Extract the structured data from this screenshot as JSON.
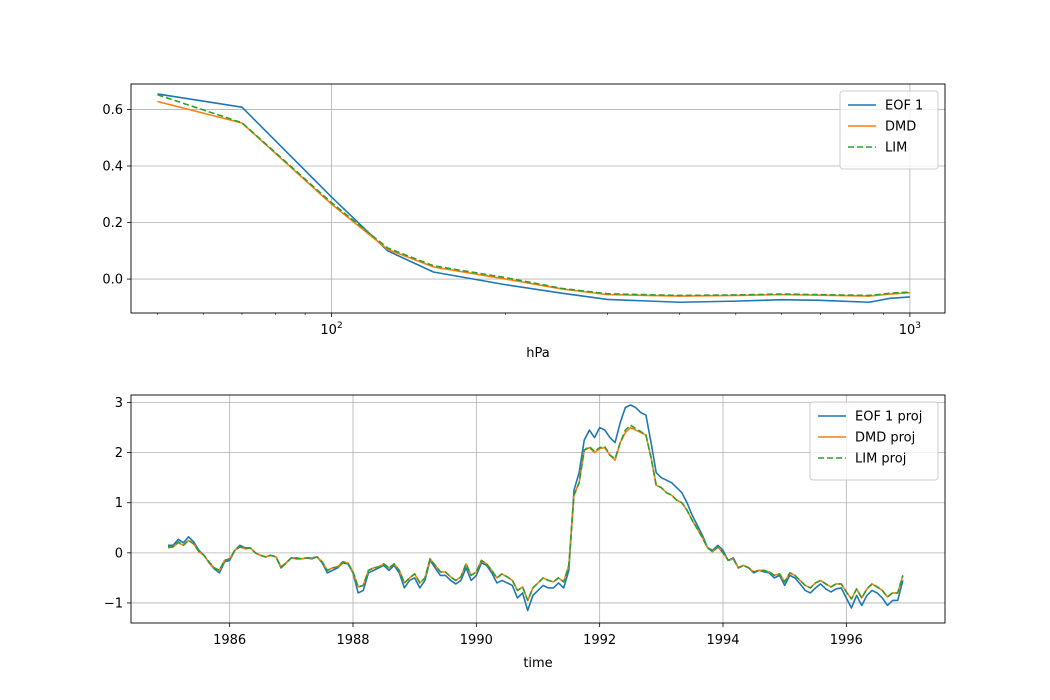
{
  "chart_data": [
    {
      "type": "line",
      "xscale": "log",
      "xlabel": "hPa",
      "ylabel": "",
      "xlim": [
        45,
        1150
      ],
      "ylim": [
        -0.12,
        0.69
      ],
      "xticks": [
        {
          "value": 100,
          "label": "10",
          "exp": "2"
        },
        {
          "value": 1000,
          "label": "10",
          "exp": "3"
        }
      ],
      "yticks": [
        {
          "value": 0.6,
          "label": "0.6"
        },
        {
          "value": 0.4,
          "label": "0.4"
        },
        {
          "value": 0.2,
          "label": "0.2"
        },
        {
          "value": 0.0,
          "label": "0.0"
        }
      ],
      "grid": true,
      "legend": "upper right",
      "x": [
        50,
        70,
        100,
        125,
        150,
        200,
        250,
        300,
        400,
        500,
        600,
        700,
        850,
        925,
        1000
      ],
      "series": [
        {
          "name": "EOF 1",
          "color": "#1f77b4",
          "dash": "solid",
          "values": [
            0.655,
            0.608,
            0.29,
            0.1,
            0.025,
            -0.02,
            -0.05,
            -0.072,
            -0.082,
            -0.078,
            -0.073,
            -0.075,
            -0.082,
            -0.068,
            -0.063
          ]
        },
        {
          "name": "DMD",
          "color": "#ff7f0e",
          "dash": "solid",
          "values": [
            0.628,
            0.552,
            0.265,
            0.105,
            0.043,
            0.0,
            -0.035,
            -0.055,
            -0.06,
            -0.058,
            -0.055,
            -0.057,
            -0.06,
            -0.053,
            -0.048
          ]
        },
        {
          "name": "LIM",
          "color": "#2ca02c",
          "dash": "dashed",
          "values": [
            0.652,
            0.553,
            0.27,
            0.11,
            0.047,
            0.005,
            -0.033,
            -0.052,
            -0.058,
            -0.056,
            -0.053,
            -0.055,
            -0.058,
            -0.05,
            -0.046
          ]
        }
      ]
    },
    {
      "type": "line",
      "xscale": "linear",
      "xlabel": "time",
      "ylabel": "",
      "xlim": [
        1984.4,
        1997.6
      ],
      "ylim": [
        -1.4,
        3.15
      ],
      "xticks": [
        {
          "value": 1986,
          "label": "1986"
        },
        {
          "value": 1988,
          "label": "1988"
        },
        {
          "value": 1990,
          "label": "1990"
        },
        {
          "value": 1992,
          "label": "1992"
        },
        {
          "value": 1994,
          "label": "1994"
        },
        {
          "value": 1996,
          "label": "1996"
        }
      ],
      "yticks": [
        {
          "value": 3,
          "label": "3"
        },
        {
          "value": 2,
          "label": "2"
        },
        {
          "value": 1,
          "label": "1"
        },
        {
          "value": 0,
          "label": "0"
        },
        {
          "value": -1,
          "label": "−1"
        }
      ],
      "grid": true,
      "legend": "upper right",
      "x_start": 1985.0,
      "x_step": 0.0833333,
      "series": [
        {
          "name": "EOF 1 proj",
          "color": "#1f77b4",
          "dash": "solid",
          "values": [
            0.15,
            0.15,
            0.27,
            0.2,
            0.32,
            0.22,
            0.05,
            -0.05,
            -0.2,
            -0.32,
            -0.4,
            -0.18,
            -0.15,
            0.05,
            0.15,
            0.1,
            0.1,
            0.0,
            -0.05,
            -0.08,
            -0.05,
            -0.08,
            -0.3,
            -0.2,
            -0.1,
            -0.12,
            -0.12,
            -0.1,
            -0.12,
            -0.08,
            -0.2,
            -0.4,
            -0.35,
            -0.3,
            -0.2,
            -0.22,
            -0.4,
            -0.8,
            -0.75,
            -0.4,
            -0.35,
            -0.3,
            -0.25,
            -0.35,
            -0.25,
            -0.4,
            -0.7,
            -0.55,
            -0.5,
            -0.7,
            -0.55,
            -0.15,
            -0.3,
            -0.45,
            -0.45,
            -0.55,
            -0.62,
            -0.55,
            -0.3,
            -0.55,
            -0.45,
            -0.2,
            -0.25,
            -0.4,
            -0.6,
            -0.55,
            -0.6,
            -0.65,
            -0.9,
            -0.8,
            -1.15,
            -0.85,
            -0.75,
            -0.65,
            -0.7,
            -0.7,
            -0.6,
            -0.7,
            -0.35,
            1.25,
            1.6,
            2.25,
            2.45,
            2.3,
            2.5,
            2.45,
            2.3,
            2.2,
            2.6,
            2.9,
            2.95,
            2.9,
            2.8,
            2.75,
            2.2,
            1.6,
            1.5,
            1.45,
            1.4,
            1.3,
            1.2,
            1.0,
            0.75,
            0.55,
            0.35,
            0.1,
            0.05,
            0.15,
            0.05,
            -0.15,
            -0.1,
            -0.3,
            -0.25,
            -0.3,
            -0.4,
            -0.35,
            -0.38,
            -0.4,
            -0.5,
            -0.45,
            -0.65,
            -0.45,
            -0.5,
            -0.62,
            -0.75,
            -0.8,
            -0.7,
            -0.62,
            -0.72,
            -0.78,
            -0.72,
            -0.7,
            -0.9,
            -1.1,
            -0.85,
            -1.05,
            -0.85,
            -0.75,
            -0.8,
            -0.9,
            -1.05,
            -0.95,
            -0.95,
            -0.55
          ]
        },
        {
          "name": "DMD proj",
          "color": "#ff7f0e",
          "dash": "solid",
          "values": [
            0.1,
            0.12,
            0.2,
            0.15,
            0.25,
            0.18,
            0.02,
            -0.05,
            -0.2,
            -0.3,
            -0.35,
            -0.15,
            -0.12,
            0.05,
            0.12,
            0.08,
            0.1,
            0.0,
            -0.05,
            -0.08,
            -0.05,
            -0.08,
            -0.28,
            -0.2,
            -0.1,
            -0.1,
            -0.12,
            -0.1,
            -0.1,
            -0.08,
            -0.18,
            -0.35,
            -0.3,
            -0.28,
            -0.18,
            -0.2,
            -0.38,
            -0.68,
            -0.65,
            -0.35,
            -0.3,
            -0.28,
            -0.22,
            -0.3,
            -0.22,
            -0.35,
            -0.6,
            -0.5,
            -0.42,
            -0.6,
            -0.5,
            -0.12,
            -0.25,
            -0.38,
            -0.38,
            -0.48,
            -0.55,
            -0.48,
            -0.22,
            -0.45,
            -0.38,
            -0.15,
            -0.22,
            -0.35,
            -0.5,
            -0.42,
            -0.48,
            -0.55,
            -0.75,
            -0.68,
            -0.95,
            -0.7,
            -0.6,
            -0.5,
            -0.55,
            -0.58,
            -0.5,
            -0.58,
            -0.25,
            1.15,
            1.4,
            2.05,
            2.1,
            2.0,
            2.08,
            2.1,
            1.95,
            1.85,
            2.2,
            2.4,
            2.5,
            2.45,
            2.4,
            2.35,
            1.9,
            1.35,
            1.3,
            1.2,
            1.15,
            1.05,
            1.0,
            0.85,
            0.65,
            0.48,
            0.3,
            0.1,
            0.02,
            0.12,
            0.0,
            -0.15,
            -0.12,
            -0.3,
            -0.25,
            -0.3,
            -0.38,
            -0.35,
            -0.35,
            -0.38,
            -0.45,
            -0.42,
            -0.58,
            -0.4,
            -0.45,
            -0.55,
            -0.65,
            -0.7,
            -0.6,
            -0.55,
            -0.62,
            -0.68,
            -0.62,
            -0.62,
            -0.78,
            -0.92,
            -0.72,
            -0.9,
            -0.72,
            -0.62,
            -0.68,
            -0.75,
            -0.88,
            -0.8,
            -0.8,
            -0.45
          ]
        },
        {
          "name": "LIM proj",
          "color": "#2ca02c",
          "dash": "dashed",
          "values": [
            0.12,
            0.12,
            0.22,
            0.15,
            0.25,
            0.18,
            0.03,
            -0.05,
            -0.18,
            -0.3,
            -0.35,
            -0.15,
            -0.12,
            0.05,
            0.12,
            0.08,
            0.1,
            0.0,
            -0.05,
            -0.08,
            -0.05,
            -0.08,
            -0.28,
            -0.2,
            -0.1,
            -0.1,
            -0.12,
            -0.1,
            -0.1,
            -0.08,
            -0.18,
            -0.35,
            -0.3,
            -0.28,
            -0.18,
            -0.2,
            -0.38,
            -0.68,
            -0.65,
            -0.35,
            -0.3,
            -0.28,
            -0.22,
            -0.3,
            -0.22,
            -0.35,
            -0.6,
            -0.5,
            -0.42,
            -0.6,
            -0.5,
            -0.12,
            -0.25,
            -0.38,
            -0.38,
            -0.48,
            -0.55,
            -0.48,
            -0.22,
            -0.45,
            -0.38,
            -0.15,
            -0.22,
            -0.35,
            -0.5,
            -0.42,
            -0.48,
            -0.55,
            -0.75,
            -0.68,
            -0.95,
            -0.7,
            -0.6,
            -0.5,
            -0.55,
            -0.58,
            -0.5,
            -0.58,
            -0.25,
            1.15,
            1.4,
            2.05,
            2.12,
            2.02,
            2.1,
            2.12,
            1.95,
            1.88,
            2.2,
            2.45,
            2.55,
            2.48,
            2.42,
            2.35,
            1.9,
            1.35,
            1.3,
            1.2,
            1.15,
            1.05,
            1.0,
            0.85,
            0.65,
            0.48,
            0.3,
            0.1,
            0.02,
            0.12,
            0.0,
            -0.15,
            -0.12,
            -0.3,
            -0.25,
            -0.3,
            -0.38,
            -0.35,
            -0.35,
            -0.38,
            -0.45,
            -0.42,
            -0.58,
            -0.4,
            -0.45,
            -0.55,
            -0.65,
            -0.7,
            -0.6,
            -0.55,
            -0.62,
            -0.68,
            -0.62,
            -0.62,
            -0.78,
            -0.92,
            -0.72,
            -0.9,
            -0.72,
            -0.62,
            -0.68,
            -0.75,
            -0.88,
            -0.8,
            -0.8,
            -0.45
          ]
        }
      ]
    }
  ]
}
